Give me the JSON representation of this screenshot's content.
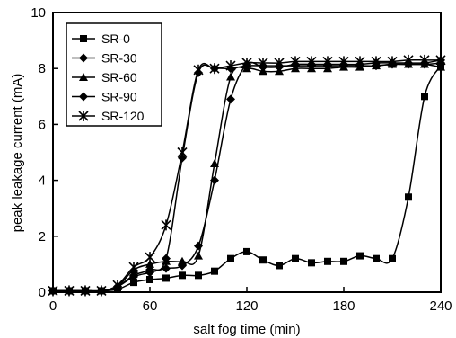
{
  "chart_data": {
    "type": "line",
    "xlabel": "salt fog time (min)",
    "ylabel": "peak leakage current (mA)",
    "xlim": [
      0,
      240
    ],
    "ylim": [
      0,
      10
    ],
    "xticks": [
      0,
      60,
      120,
      180,
      240
    ],
    "yticks": [
      0,
      2,
      4,
      6,
      8,
      10
    ],
    "legend_position": "top-left",
    "grid": false,
    "series": [
      {
        "name": "SR-0",
        "marker": "square",
        "points": [
          [
            0,
            0.05
          ],
          [
            10,
            0.05
          ],
          [
            20,
            0.05
          ],
          [
            30,
            0.05
          ],
          [
            40,
            0.1
          ],
          [
            50,
            0.35
          ],
          [
            60,
            0.45
          ],
          [
            70,
            0.5
          ],
          [
            80,
            0.6
          ],
          [
            90,
            0.6
          ],
          [
            100,
            0.75
          ],
          [
            110,
            1.2
          ],
          [
            120,
            1.45
          ],
          [
            130,
            1.15
          ],
          [
            140,
            0.95
          ],
          [
            150,
            1.2
          ],
          [
            160,
            1.05
          ],
          [
            170,
            1.1
          ],
          [
            180,
            1.1
          ],
          [
            190,
            1.3
          ],
          [
            200,
            1.2
          ],
          [
            210,
            1.2
          ],
          [
            220,
            3.4
          ],
          [
            230,
            7.0
          ],
          [
            240,
            8.1
          ]
        ]
      },
      {
        "name": "SR-30",
        "marker": "diamond",
        "points": [
          [
            0,
            0.05
          ],
          [
            10,
            0.05
          ],
          [
            20,
            0.05
          ],
          [
            30,
            0.05
          ],
          [
            40,
            0.2
          ],
          [
            50,
            0.6
          ],
          [
            60,
            0.8
          ],
          [
            70,
            1.2
          ],
          [
            80,
            4.8
          ],
          [
            90,
            7.85
          ],
          [
            100,
            8.0
          ],
          [
            110,
            8.0
          ],
          [
            120,
            8.1
          ],
          [
            130,
            8.1
          ],
          [
            140,
            8.1
          ],
          [
            150,
            8.1
          ],
          [
            160,
            8.1
          ],
          [
            170,
            8.1
          ],
          [
            180,
            8.1
          ],
          [
            190,
            8.1
          ],
          [
            200,
            8.1
          ],
          [
            210,
            8.15
          ],
          [
            220,
            8.15
          ],
          [
            230,
            8.15
          ],
          [
            240,
            8.2
          ]
        ]
      },
      {
        "name": "SR-60",
        "marker": "triangle",
        "points": [
          [
            0,
            0.05
          ],
          [
            10,
            0.05
          ],
          [
            20,
            0.05
          ],
          [
            30,
            0.05
          ],
          [
            40,
            0.2
          ],
          [
            50,
            0.8
          ],
          [
            60,
            1.0
          ],
          [
            70,
            1.1
          ],
          [
            80,
            1.1
          ],
          [
            90,
            1.3
          ],
          [
            100,
            4.6
          ],
          [
            110,
            7.7
          ],
          [
            120,
            8.0
          ],
          [
            130,
            7.9
          ],
          [
            140,
            7.9
          ],
          [
            150,
            8.0
          ],
          [
            160,
            8.0
          ],
          [
            170,
            8.0
          ],
          [
            180,
            8.05
          ],
          [
            190,
            8.05
          ],
          [
            200,
            8.1
          ],
          [
            210,
            8.15
          ],
          [
            220,
            8.15
          ],
          [
            230,
            8.15
          ],
          [
            240,
            8.05
          ]
        ]
      },
      {
        "name": "SR-90",
        "marker": "diamond",
        "points": [
          [
            0,
            0.05
          ],
          [
            10,
            0.05
          ],
          [
            20,
            0.05
          ],
          [
            30,
            0.05
          ],
          [
            40,
            0.2
          ],
          [
            50,
            0.55
          ],
          [
            60,
            0.7
          ],
          [
            70,
            0.85
          ],
          [
            80,
            0.95
          ],
          [
            90,
            1.65
          ],
          [
            100,
            4.0
          ],
          [
            110,
            6.9
          ],
          [
            120,
            8.15
          ],
          [
            130,
            8.05
          ],
          [
            140,
            8.05
          ],
          [
            150,
            8.15
          ],
          [
            160,
            8.15
          ],
          [
            170,
            8.15
          ],
          [
            180,
            8.15
          ],
          [
            190,
            8.15
          ],
          [
            200,
            8.2
          ],
          [
            210,
            8.2
          ],
          [
            220,
            8.2
          ],
          [
            230,
            8.2
          ],
          [
            240,
            8.3
          ]
        ]
      },
      {
        "name": "SR-120",
        "marker": "asterisk",
        "points": [
          [
            0,
            0.05
          ],
          [
            10,
            0.05
          ],
          [
            20,
            0.05
          ],
          [
            30,
            0.05
          ],
          [
            40,
            0.25
          ],
          [
            50,
            0.9
          ],
          [
            60,
            1.25
          ],
          [
            70,
            2.4
          ],
          [
            80,
            5.0
          ],
          [
            90,
            7.95
          ],
          [
            100,
            8.0
          ],
          [
            110,
            8.1
          ],
          [
            120,
            8.2
          ],
          [
            130,
            8.2
          ],
          [
            140,
            8.2
          ],
          [
            150,
            8.25
          ],
          [
            160,
            8.25
          ],
          [
            170,
            8.25
          ],
          [
            180,
            8.25
          ],
          [
            190,
            8.25
          ],
          [
            200,
            8.25
          ],
          [
            210,
            8.25
          ],
          [
            220,
            8.3
          ],
          [
            230,
            8.3
          ],
          [
            240,
            8.3
          ]
        ]
      }
    ]
  },
  "colors": {
    "ink": "#000000",
    "background": "#ffffff"
  }
}
